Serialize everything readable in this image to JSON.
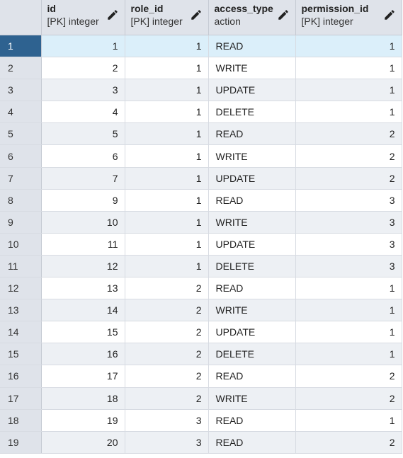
{
  "columns": [
    {
      "name": "id",
      "type": "[PK] integer"
    },
    {
      "name": "role_id",
      "type": "[PK] integer"
    },
    {
      "name": "access_type",
      "type": "action"
    },
    {
      "name": "permission_id",
      "type": "[PK] integer"
    }
  ],
  "selected_row": 1,
  "rows": [
    {
      "n": "1",
      "id": "1",
      "role_id": "1",
      "access_type": "READ",
      "permission_id": "1"
    },
    {
      "n": "2",
      "id": "2",
      "role_id": "1",
      "access_type": "WRITE",
      "permission_id": "1"
    },
    {
      "n": "3",
      "id": "3",
      "role_id": "1",
      "access_type": "UPDATE",
      "permission_id": "1"
    },
    {
      "n": "4",
      "id": "4",
      "role_id": "1",
      "access_type": "DELETE",
      "permission_id": "1"
    },
    {
      "n": "5",
      "id": "5",
      "role_id": "1",
      "access_type": "READ",
      "permission_id": "2"
    },
    {
      "n": "6",
      "id": "6",
      "role_id": "1",
      "access_type": "WRITE",
      "permission_id": "2"
    },
    {
      "n": "7",
      "id": "7",
      "role_id": "1",
      "access_type": "UPDATE",
      "permission_id": "2"
    },
    {
      "n": "8",
      "id": "9",
      "role_id": "1",
      "access_type": "READ",
      "permission_id": "3"
    },
    {
      "n": "9",
      "id": "10",
      "role_id": "1",
      "access_type": "WRITE",
      "permission_id": "3"
    },
    {
      "n": "10",
      "id": "11",
      "role_id": "1",
      "access_type": "UPDATE",
      "permission_id": "3"
    },
    {
      "n": "11",
      "id": "12",
      "role_id": "1",
      "access_type": "DELETE",
      "permission_id": "3"
    },
    {
      "n": "12",
      "id": "13",
      "role_id": "2",
      "access_type": "READ",
      "permission_id": "1"
    },
    {
      "n": "13",
      "id": "14",
      "role_id": "2",
      "access_type": "WRITE",
      "permission_id": "1"
    },
    {
      "n": "14",
      "id": "15",
      "role_id": "2",
      "access_type": "UPDATE",
      "permission_id": "1"
    },
    {
      "n": "15",
      "id": "16",
      "role_id": "2",
      "access_type": "DELETE",
      "permission_id": "1"
    },
    {
      "n": "16",
      "id": "17",
      "role_id": "2",
      "access_type": "READ",
      "permission_id": "2"
    },
    {
      "n": "17",
      "id": "18",
      "role_id": "2",
      "access_type": "WRITE",
      "permission_id": "2"
    },
    {
      "n": "18",
      "id": "19",
      "role_id": "3",
      "access_type": "READ",
      "permission_id": "1"
    },
    {
      "n": "19",
      "id": "20",
      "role_id": "3",
      "access_type": "READ",
      "permission_id": "2"
    }
  ]
}
